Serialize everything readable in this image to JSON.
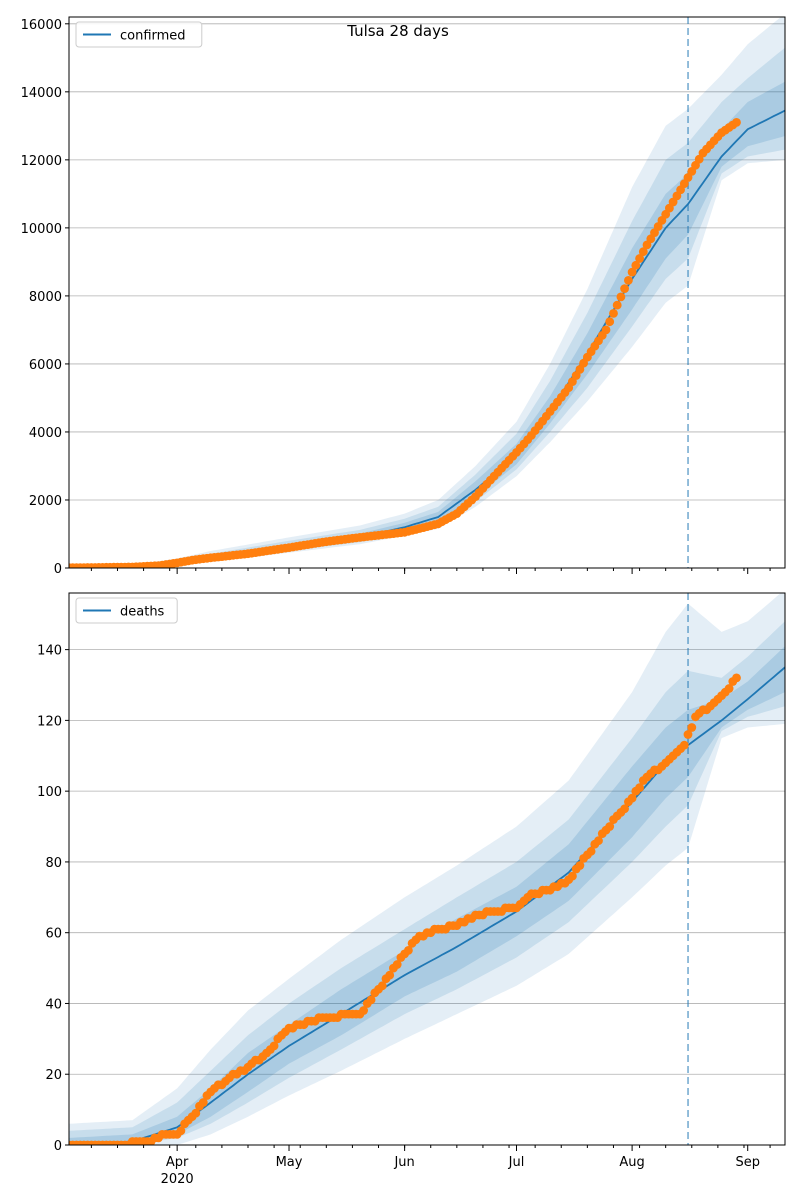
{
  "title": "Tulsa 28 days",
  "chart_data": [
    {
      "type": "line",
      "legend": "confirmed",
      "legend_placement": "top-left",
      "grid": "horizontal",
      "xlim": [
        "2020-03-03",
        "2020-09-11"
      ],
      "ylim": [
        0,
        16200
      ],
      "yticks": [
        0,
        2000,
        4000,
        6000,
        8000,
        10000,
        12000,
        14000,
        16000
      ],
      "xticks": [
        {
          "date": "2020-04-01",
          "label": "Apr",
          "sublabel": "2020"
        },
        {
          "date": "2020-05-01",
          "label": "May"
        },
        {
          "date": "2020-06-01",
          "label": "Jun"
        },
        {
          "date": "2020-07-01",
          "label": "Jul"
        },
        {
          "date": "2020-08-01",
          "label": "Aug"
        },
        {
          "date": "2020-09-01",
          "label": "Sep"
        }
      ],
      "forecast_start": "2020-08-16",
      "series": [
        {
          "name": "confirmed",
          "kind": "model-median",
          "color": "#1f77b4",
          "x": [
            "2020-03-03",
            "2020-03-20",
            "2020-04-01",
            "2020-04-10",
            "2020-05-01",
            "2020-05-20",
            "2020-06-01",
            "2020-06-10",
            "2020-06-20",
            "2020-07-01",
            "2020-07-10",
            "2020-07-20",
            "2020-08-01",
            "2020-08-10",
            "2020-08-16",
            "2020-08-25",
            "2020-09-01",
            "2020-09-11"
          ],
          "values": [
            10,
            30,
            150,
            300,
            600,
            900,
            1200,
            1500,
            2300,
            3300,
            4600,
            6300,
            8500,
            10000,
            10700,
            12100,
            12900,
            13450
          ],
          "bands": [
            {
              "lower": [
                0,
                10,
                80,
                180,
                450,
                700,
                950,
                1150,
                1800,
                2700,
                3700,
                4900,
                6500,
                7800,
                8300,
                11400,
                11900,
                12000
              ],
              "upper": [
                40,
                80,
                280,
                500,
                900,
                1250,
                1600,
                2000,
                3000,
                4300,
                6000,
                8200,
                11200,
                13000,
                13500,
                14500,
                15400,
                16300
              ]
            },
            {
              "lower": [
                0,
                15,
                100,
                210,
                500,
                760,
                1020,
                1250,
                1950,
                2900,
                4000,
                5300,
                7100,
                8500,
                9100,
                11600,
                12100,
                12300
              ],
              "upper": [
                30,
                60,
                230,
                420,
                800,
                1120,
                1450,
                1800,
                2750,
                3950,
                5500,
                7500,
                10200,
                12000,
                12500,
                13700,
                14400,
                15300
              ]
            },
            {
              "lower": [
                5,
                20,
                120,
                240,
                540,
                810,
                1080,
                1330,
                2080,
                3050,
                4250,
                5700,
                7600,
                9100,
                9800,
                11800,
                12400,
                12700
              ],
              "upper": [
                20,
                45,
                190,
                360,
                700,
                1010,
                1330,
                1650,
                2550,
                3650,
                5050,
                6900,
                9400,
                11000,
                11600,
                12900,
                13700,
                14300
              ]
            }
          ]
        },
        {
          "name": "observed confirmed",
          "kind": "observed",
          "color": "#ff7f0e",
          "x": [
            "2020-03-03",
            "2020-03-10",
            "2020-03-20",
            "2020-03-27",
            "2020-04-01",
            "2020-04-05",
            "2020-04-10",
            "2020-04-20",
            "2020-05-01",
            "2020-05-10",
            "2020-05-20",
            "2020-06-01",
            "2020-06-10",
            "2020-06-15",
            "2020-06-20",
            "2020-06-25",
            "2020-07-01",
            "2020-07-05",
            "2020-07-10",
            "2020-07-15",
            "2020-07-20",
            "2020-07-25",
            "2020-08-01",
            "2020-08-05",
            "2020-08-10",
            "2020-08-15",
            "2020-08-20",
            "2020-08-25",
            "2020-08-29"
          ],
          "values": [
            10,
            15,
            30,
            70,
            150,
            230,
            300,
            420,
            600,
            760,
            900,
            1050,
            1300,
            1600,
            2100,
            2700,
            3400,
            3900,
            4600,
            5300,
            6200,
            7000,
            8700,
            9500,
            10400,
            11300,
            12200,
            12800,
            13100
          ]
        }
      ]
    },
    {
      "type": "line",
      "legend": "deaths",
      "legend_placement": "top-left",
      "grid": "horizontal",
      "xlim": [
        "2020-03-03",
        "2020-09-11"
      ],
      "ylim": [
        0,
        156
      ],
      "yticks": [
        0,
        20,
        40,
        60,
        80,
        100,
        120,
        140
      ],
      "xticks": [
        {
          "date": "2020-04-01",
          "label": "Apr",
          "sublabel": "2020"
        },
        {
          "date": "2020-05-01",
          "label": "May"
        },
        {
          "date": "2020-06-01",
          "label": "Jun"
        },
        {
          "date": "2020-07-01",
          "label": "Jul"
        },
        {
          "date": "2020-08-01",
          "label": "Aug"
        },
        {
          "date": "2020-09-01",
          "label": "Sep"
        }
      ],
      "forecast_start": "2020-08-16",
      "series": [
        {
          "name": "deaths",
          "kind": "model-median",
          "color": "#1f77b4",
          "x": [
            "2020-03-03",
            "2020-03-20",
            "2020-04-01",
            "2020-04-10",
            "2020-04-20",
            "2020-05-01",
            "2020-05-15",
            "2020-06-01",
            "2020-06-15",
            "2020-07-01",
            "2020-07-15",
            "2020-08-01",
            "2020-08-10",
            "2020-08-16",
            "2020-08-25",
            "2020-09-01",
            "2020-09-11"
          ],
          "values": [
            0,
            1,
            5,
            12,
            20,
            28,
            37,
            48,
            56,
            66,
            77,
            97,
            108,
            113,
            120,
            126,
            135
          ],
          "bands": [
            {
              "lower": [
                0,
                0,
                0,
                3,
                8,
                14,
                21,
                30,
                37,
                45,
                54,
                70,
                79,
                84,
                115,
                118,
                119
              ],
              "upper": [
                6,
                7,
                16,
                27,
                38,
                47,
                58,
                70,
                79,
                90,
                103,
                128,
                145,
                153,
                145,
                148,
                157
              ]
            },
            {
              "lower": [
                0,
                0,
                2,
                6,
                12,
                19,
                27,
                37,
                44,
                53,
                63,
                80,
                90,
                96,
                117,
                121,
                124
              ],
              "upper": [
                4,
                5,
                12,
                21,
                31,
                40,
                50,
                61,
                70,
                80,
                92,
                115,
                128,
                134,
                132,
                138,
                148
              ]
            },
            {
              "lower": [
                0,
                0,
                3,
                8,
                15,
                23,
                31,
                42,
                49,
                59,
                69,
                87,
                98,
                104,
                118,
                123,
                128
              ],
              "upper": [
                2,
                3,
                8,
                16,
                26,
                34,
                44,
                55,
                64,
                73,
                85,
                107,
                118,
                123,
                126,
                131,
                141
              ]
            }
          ]
        },
        {
          "name": "observed deaths",
          "kind": "observed",
          "color": "#ff7f0e",
          "x": [
            "2020-03-03",
            "2020-03-15",
            "2020-03-25",
            "2020-03-28",
            "2020-04-01",
            "2020-04-05",
            "2020-04-10",
            "2020-04-15",
            "2020-04-20",
            "2020-04-25",
            "2020-05-01",
            "2020-05-10",
            "2020-05-20",
            "2020-05-25",
            "2020-06-01",
            "2020-06-05",
            "2020-06-10",
            "2020-06-15",
            "2020-06-20",
            "2020-06-25",
            "2020-07-01",
            "2020-07-05",
            "2020-07-10",
            "2020-07-15",
            "2020-07-20",
            "2020-07-25",
            "2020-08-01",
            "2020-08-05",
            "2020-08-10",
            "2020-08-15",
            "2020-08-18",
            "2020-08-22",
            "2020-08-26",
            "2020-08-29"
          ],
          "values": [
            0,
            0,
            1,
            3,
            3,
            8,
            15,
            19,
            22,
            26,
            33,
            36,
            37,
            44,
            54,
            59,
            61,
            62,
            65,
            66,
            67,
            71,
            72,
            75,
            82,
            89,
            98,
            104,
            108,
            113,
            121,
            124,
            128,
            132
          ]
        }
      ]
    }
  ]
}
